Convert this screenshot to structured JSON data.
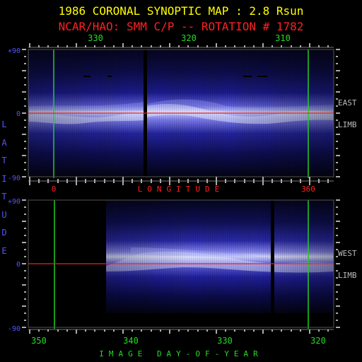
{
  "title": "1986 CORONAL SYNOPTIC MAP : 2.8 Rsun",
  "subtitle": "NCAR/HAO: SMM C/P -- ROTATION # 1782",
  "colors": {
    "title": "#ffff00",
    "subtitle": "#ff2020",
    "top_axis_labels": "#22dd22",
    "lat_labels": "#5555ff",
    "side_labels": "#bbbbbb",
    "longitude_label": "#ff2020",
    "bottom_axis_labels": "#22dd22",
    "meridian_line": "#22cc22",
    "equator_line": "#ee2222",
    "tick_marks": "#aaaaaa"
  },
  "top_axis": {
    "ticks": [
      "330",
      "320",
      "310"
    ]
  },
  "longitude_axis": {
    "label": "LONGITUDE",
    "ticks": [
      "0",
      "360"
    ]
  },
  "bottom_axis": {
    "label": "IMAGE DAY-OF-YEAR",
    "ticks": [
      "350",
      "340",
      "330",
      "320"
    ]
  },
  "latitude_axis": {
    "label": "LATITUDE",
    "ticks_top": [
      "+90",
      "0",
      "-90"
    ],
    "ticks_bottom": [
      "+90",
      "0",
      "-90"
    ]
  },
  "panels": {
    "east": {
      "label_line1": "EAST",
      "label_line2": "LIMB"
    },
    "west": {
      "label_line1": "WEST",
      "label_line2": "LIMB"
    }
  }
}
